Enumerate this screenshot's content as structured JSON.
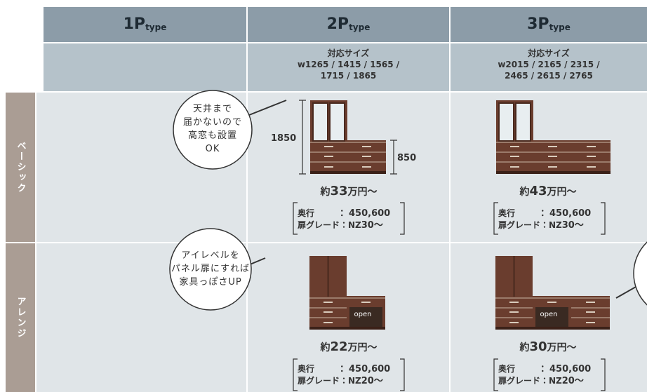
{
  "columns": [
    {
      "name": "1P",
      "suffix": "type"
    },
    {
      "name": "2P",
      "suffix": "type",
      "size_label": "対応サイズ",
      "sizes": [
        "w1265 / 1415 / 1565 /",
        "1715 / 1865"
      ]
    },
    {
      "name": "3P",
      "suffix": "type",
      "size_label": "対応サイズ",
      "sizes": [
        "w2015 / 2165 / 2315 /",
        "2465 / 2615 / 2765"
      ]
    }
  ],
  "rows": [
    {
      "label": "ベーシック",
      "note": [
        "天井まで",
        "届かないので",
        "高窓も設置",
        "OK"
      ],
      "dimensions": [
        "1850",
        "850"
      ],
      "cells": [
        {
          "price_prefix": "約",
          "price": "33",
          "price_suffix": "万円～",
          "depth_label": "奥行",
          "depth_value": "：450,600",
          "grade_label": "扉グレード：NZ",
          "grade_value": "30～"
        },
        {
          "price_prefix": "約",
          "price": "43",
          "price_suffix": "万円～",
          "depth_label": "奥行",
          "depth_value": "：450,600",
          "grade_label": "扉グレード：NZ",
          "grade_value": "30～"
        }
      ]
    },
    {
      "label": "アレンジ",
      "note": [
        "アイレベルを",
        "パネル扉にすれば",
        "家具っぽさUP"
      ],
      "door_label": "open",
      "cells": [
        {
          "price_prefix": "約",
          "price": "22",
          "price_suffix": "万円～",
          "depth_label": "奥行",
          "depth_value": "：450,600",
          "grade_label": "扉グレード：NZ",
          "grade_value": "20～"
        },
        {
          "price_prefix": "約",
          "price": "30",
          "price_suffix": "万円～",
          "depth_label": "奥行",
          "depth_value": "：450,600",
          "grade_label": "扉グレード：NZ",
          "grade_value": "20～"
        }
      ]
    }
  ]
}
